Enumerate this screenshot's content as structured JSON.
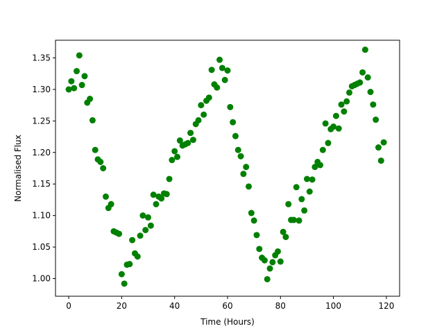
{
  "chart_data": {
    "type": "scatter",
    "title": "",
    "xlabel": "Time (Hours)",
    "ylabel": "Normalised Flux",
    "xlim": [
      -5,
      125
    ],
    "ylim": [
      0.972,
      1.378
    ],
    "x_ticks": [
      0,
      20,
      40,
      60,
      80,
      100,
      120
    ],
    "y_ticks": [
      1.0,
      1.05,
      1.1,
      1.15,
      1.2,
      1.25,
      1.3,
      1.35
    ],
    "x_tick_labels": [
      "0",
      "20",
      "40",
      "60",
      "80",
      "100",
      "120"
    ],
    "y_tick_labels": [
      "1.00",
      "1.05",
      "1.10",
      "1.15",
      "1.20",
      "1.25",
      "1.30",
      "1.35"
    ],
    "grid": false,
    "marker_color": "#008000",
    "series": [
      {
        "x": [
          0,
          1,
          2,
          3,
          4,
          5,
          6,
          7,
          8,
          9,
          10,
          11,
          12,
          13,
          14,
          15,
          16,
          17,
          18,
          19,
          20,
          21,
          22,
          23,
          24,
          25,
          26,
          27,
          28,
          29,
          30,
          31,
          32,
          33,
          34,
          35,
          36,
          37,
          38,
          39,
          40,
          41,
          42,
          43,
          44,
          45,
          46,
          47,
          48,
          49,
          50,
          51,
          52,
          53,
          54,
          55,
          56,
          57,
          58,
          59,
          60,
          61,
          62,
          63,
          64,
          65,
          66,
          67,
          68,
          69,
          70,
          71,
          72,
          73,
          74,
          75,
          76,
          77,
          78,
          79,
          80,
          81,
          82,
          83,
          84,
          85,
          86,
          87,
          88,
          89,
          90,
          91,
          92,
          93,
          94,
          95,
          96,
          97,
          98,
          99,
          100,
          101,
          102,
          103,
          104,
          105,
          106,
          107,
          108,
          109,
          110,
          111,
          112,
          113,
          114,
          115,
          116,
          117,
          118,
          119
        ],
        "y": [
          1.3,
          1.313,
          1.302,
          1.329,
          1.354,
          1.307,
          1.321,
          1.279,
          1.285,
          1.251,
          1.204,
          1.189,
          1.185,
          1.175,
          1.13,
          1.112,
          1.118,
          1.075,
          1.073,
          1.071,
          1.007,
          0.992,
          1.022,
          1.023,
          1.061,
          1.04,
          1.035,
          1.068,
          1.1,
          1.077,
          1.097,
          1.084,
          1.133,
          1.118,
          1.13,
          1.127,
          1.135,
          1.134,
          1.158,
          1.188,
          1.202,
          1.193,
          1.219,
          1.211,
          1.213,
          1.215,
          1.231,
          1.22,
          1.245,
          1.251,
          1.275,
          1.26,
          1.282,
          1.287,
          1.331,
          1.308,
          1.303,
          1.347,
          1.334,
          1.315,
          1.33,
          1.272,
          1.248,
          1.226,
          1.204,
          1.194,
          1.166,
          1.177,
          1.146,
          1.104,
          1.092,
          1.069,
          1.047,
          1.033,
          1.029,
          0.999,
          1.016,
          1.026,
          1.037,
          1.043,
          1.027,
          1.074,
          1.066,
          1.118,
          1.093,
          1.093,
          1.145,
          1.092,
          1.126,
          1.108,
          1.158,
          1.138,
          1.157,
          1.177,
          1.185,
          1.18,
          1.204,
          1.246,
          1.215,
          1.237,
          1.241,
          1.258,
          1.238,
          1.276,
          1.265,
          1.281,
          1.295,
          1.305,
          1.307,
          1.309,
          1.311,
          1.327,
          1.363,
          1.319,
          1.296,
          1.276,
          1.252,
          1.208,
          1.187,
          1.216
        ]
      }
    ]
  }
}
